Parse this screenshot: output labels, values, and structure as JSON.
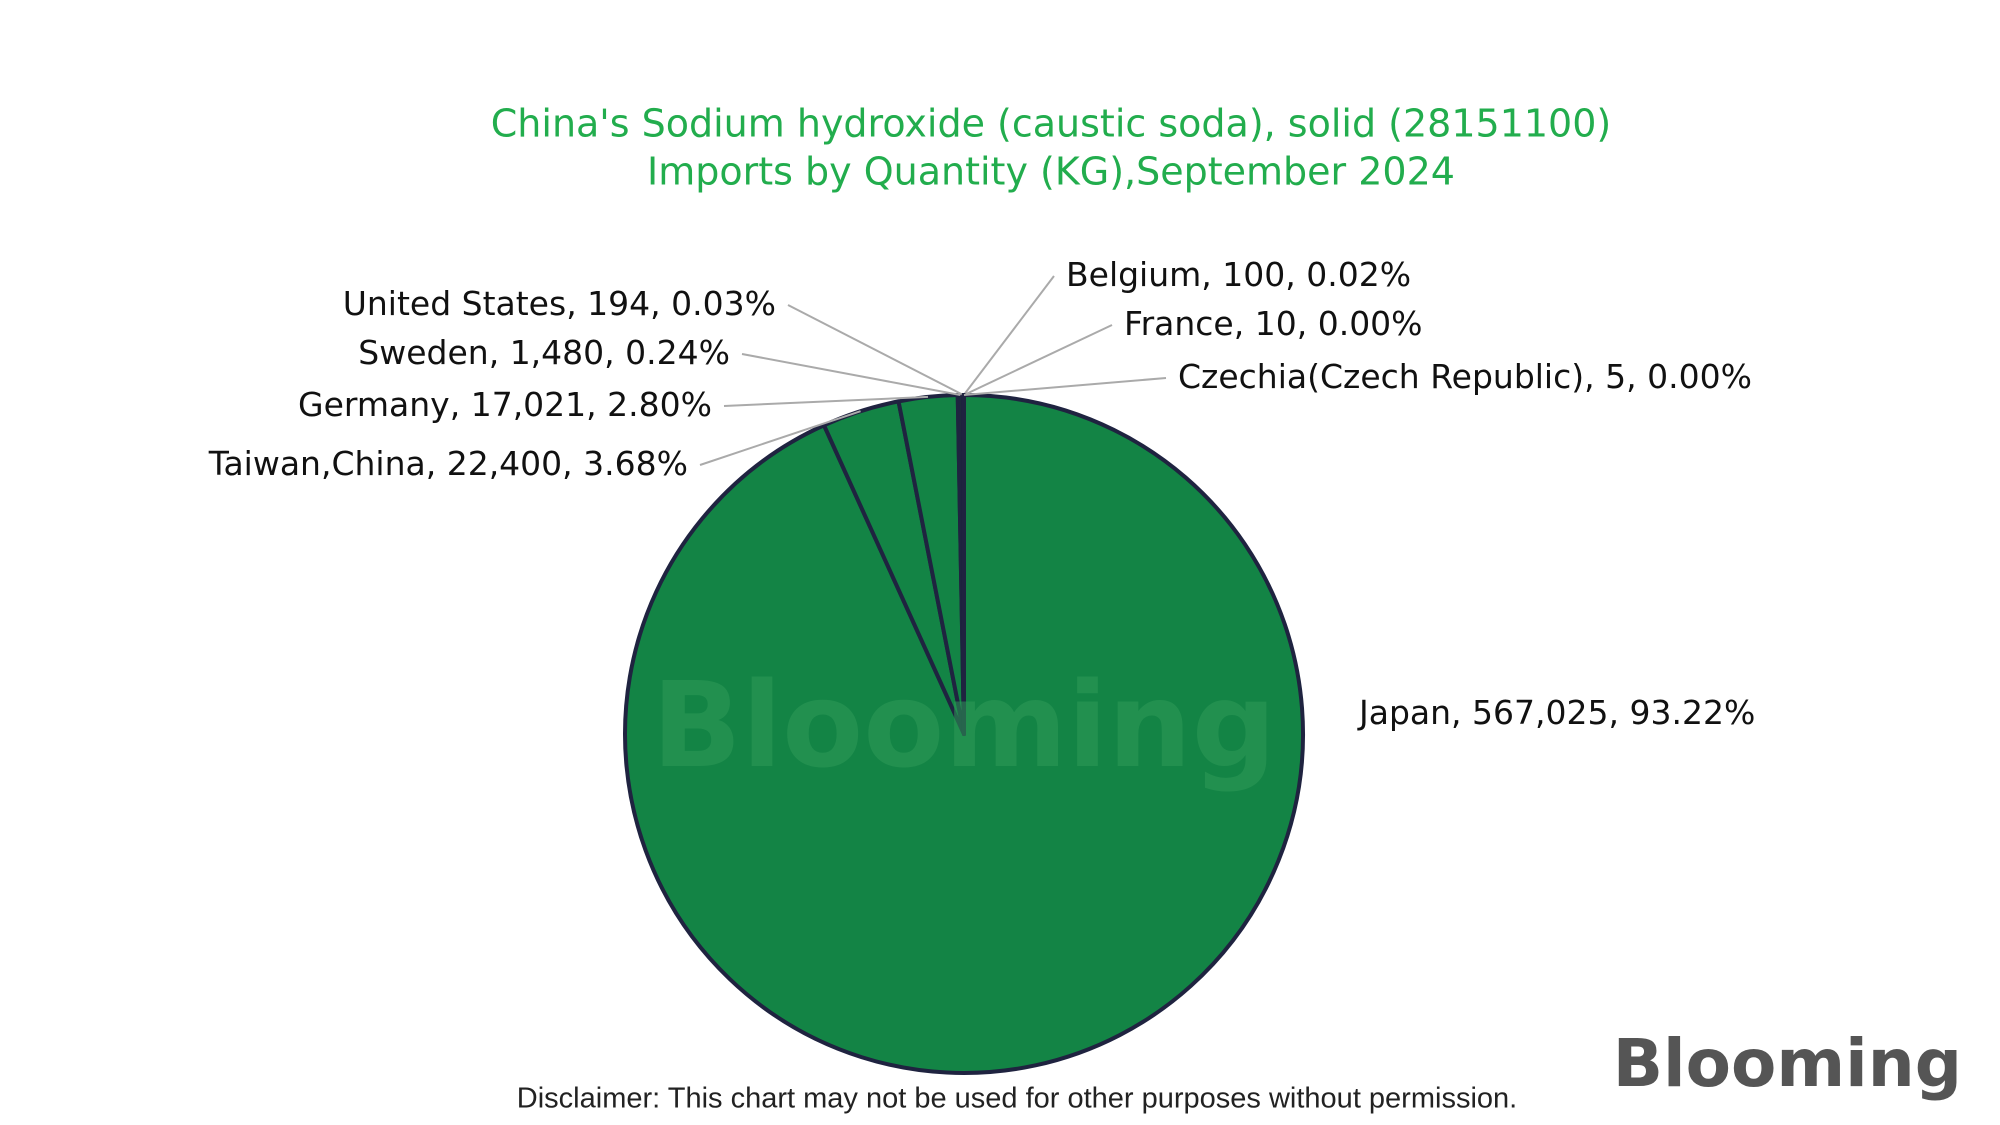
{
  "chart_data": {
    "type": "pie",
    "title": [
      "China's Sodium hydroxide (caustic soda), solid (28151100)",
      "Imports by Quantity (KG),September 2024"
    ],
    "categories": [
      "Japan",
      "Taiwan,China",
      "Germany",
      "Sweden",
      "United States",
      "Belgium",
      "France",
      "Czechia(Czech Republic)"
    ],
    "values": [
      567025,
      22400,
      17021,
      1480,
      194,
      100,
      10,
      5
    ],
    "value_labels": [
      "567,025",
      "22,400",
      "17,021",
      "1,480",
      "194",
      "100",
      "10",
      "5"
    ],
    "percents": [
      93.22,
      3.68,
      2.8,
      0.24,
      0.03,
      0.02,
      0,
      0
    ],
    "percent_labels": [
      "93.22%",
      "3.68%",
      "2.80%",
      "0.24%",
      "0.03%",
      "0.02%",
      "0.00%",
      "0.00%"
    ],
    "label_separator": ", ",
    "colors": [
      "#138445",
      "#138445",
      "#138445",
      "#1f2a3c",
      "#1f2a3c",
      "#1f2a3c",
      "#1f2a3c",
      "#1f2a3c"
    ]
  },
  "watermark": "Blooming",
  "logo": "Blooming",
  "disclaimer": "Disclaimer: This chart may not be used for other purposes without permission."
}
